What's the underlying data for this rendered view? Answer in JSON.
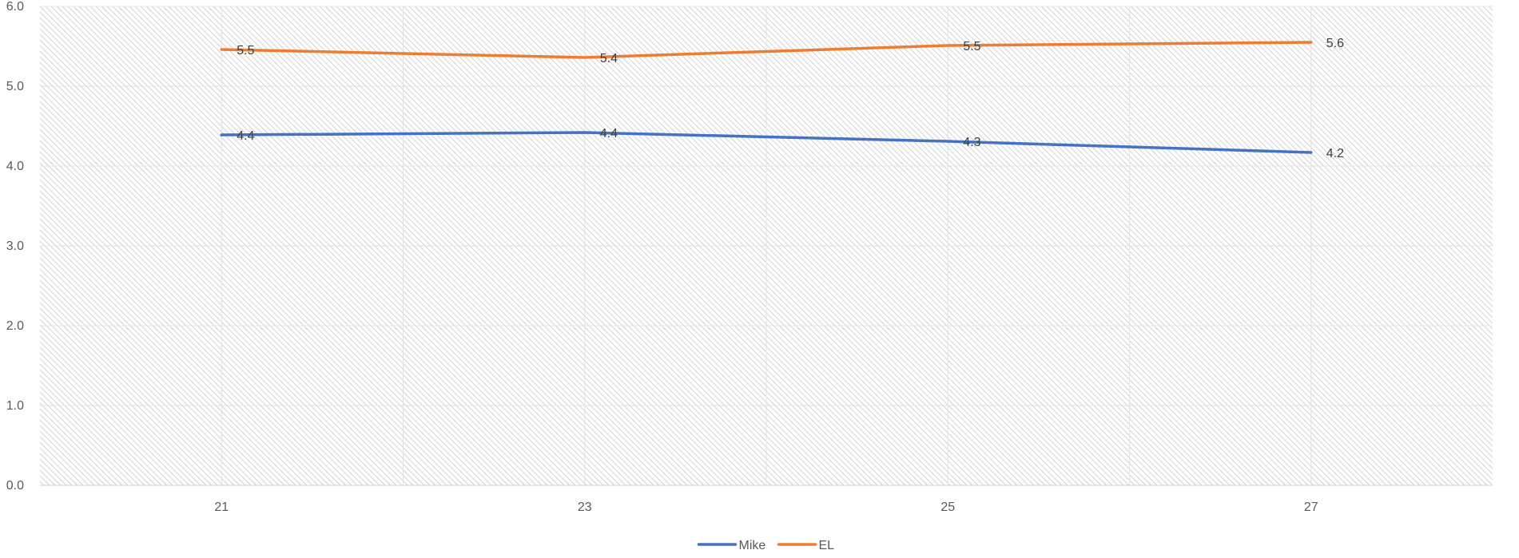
{
  "chart_data": {
    "type": "line",
    "title": "",
    "xlabel": "",
    "ylabel": "",
    "x": [
      21,
      23,
      25,
      27
    ],
    "x_tick_labels": [
      "21",
      "23",
      "25",
      "27"
    ],
    "xlim": [
      20,
      28
    ],
    "ylim": [
      0,
      6
    ],
    "y_ticks": [
      0,
      1,
      2,
      3,
      4,
      5,
      6
    ],
    "y_tick_labels": [
      "0.0",
      "1.0",
      "2.0",
      "3.0",
      "4.0",
      "5.0",
      "6.0"
    ],
    "grid": true,
    "legend_position": "bottom",
    "series": [
      {
        "name": "Mike",
        "color": "#4472C4",
        "values": [
          4.39,
          4.42,
          4.31,
          4.17
        ],
        "labels": [
          "4.4",
          "4.4",
          "4.3",
          "4.2"
        ]
      },
      {
        "name": "EL",
        "color": "#ED7D31",
        "values": [
          5.46,
          5.36,
          5.51,
          5.55
        ],
        "labels": [
          "5.5",
          "5.4",
          "5.5",
          "5.6"
        ]
      }
    ]
  }
}
